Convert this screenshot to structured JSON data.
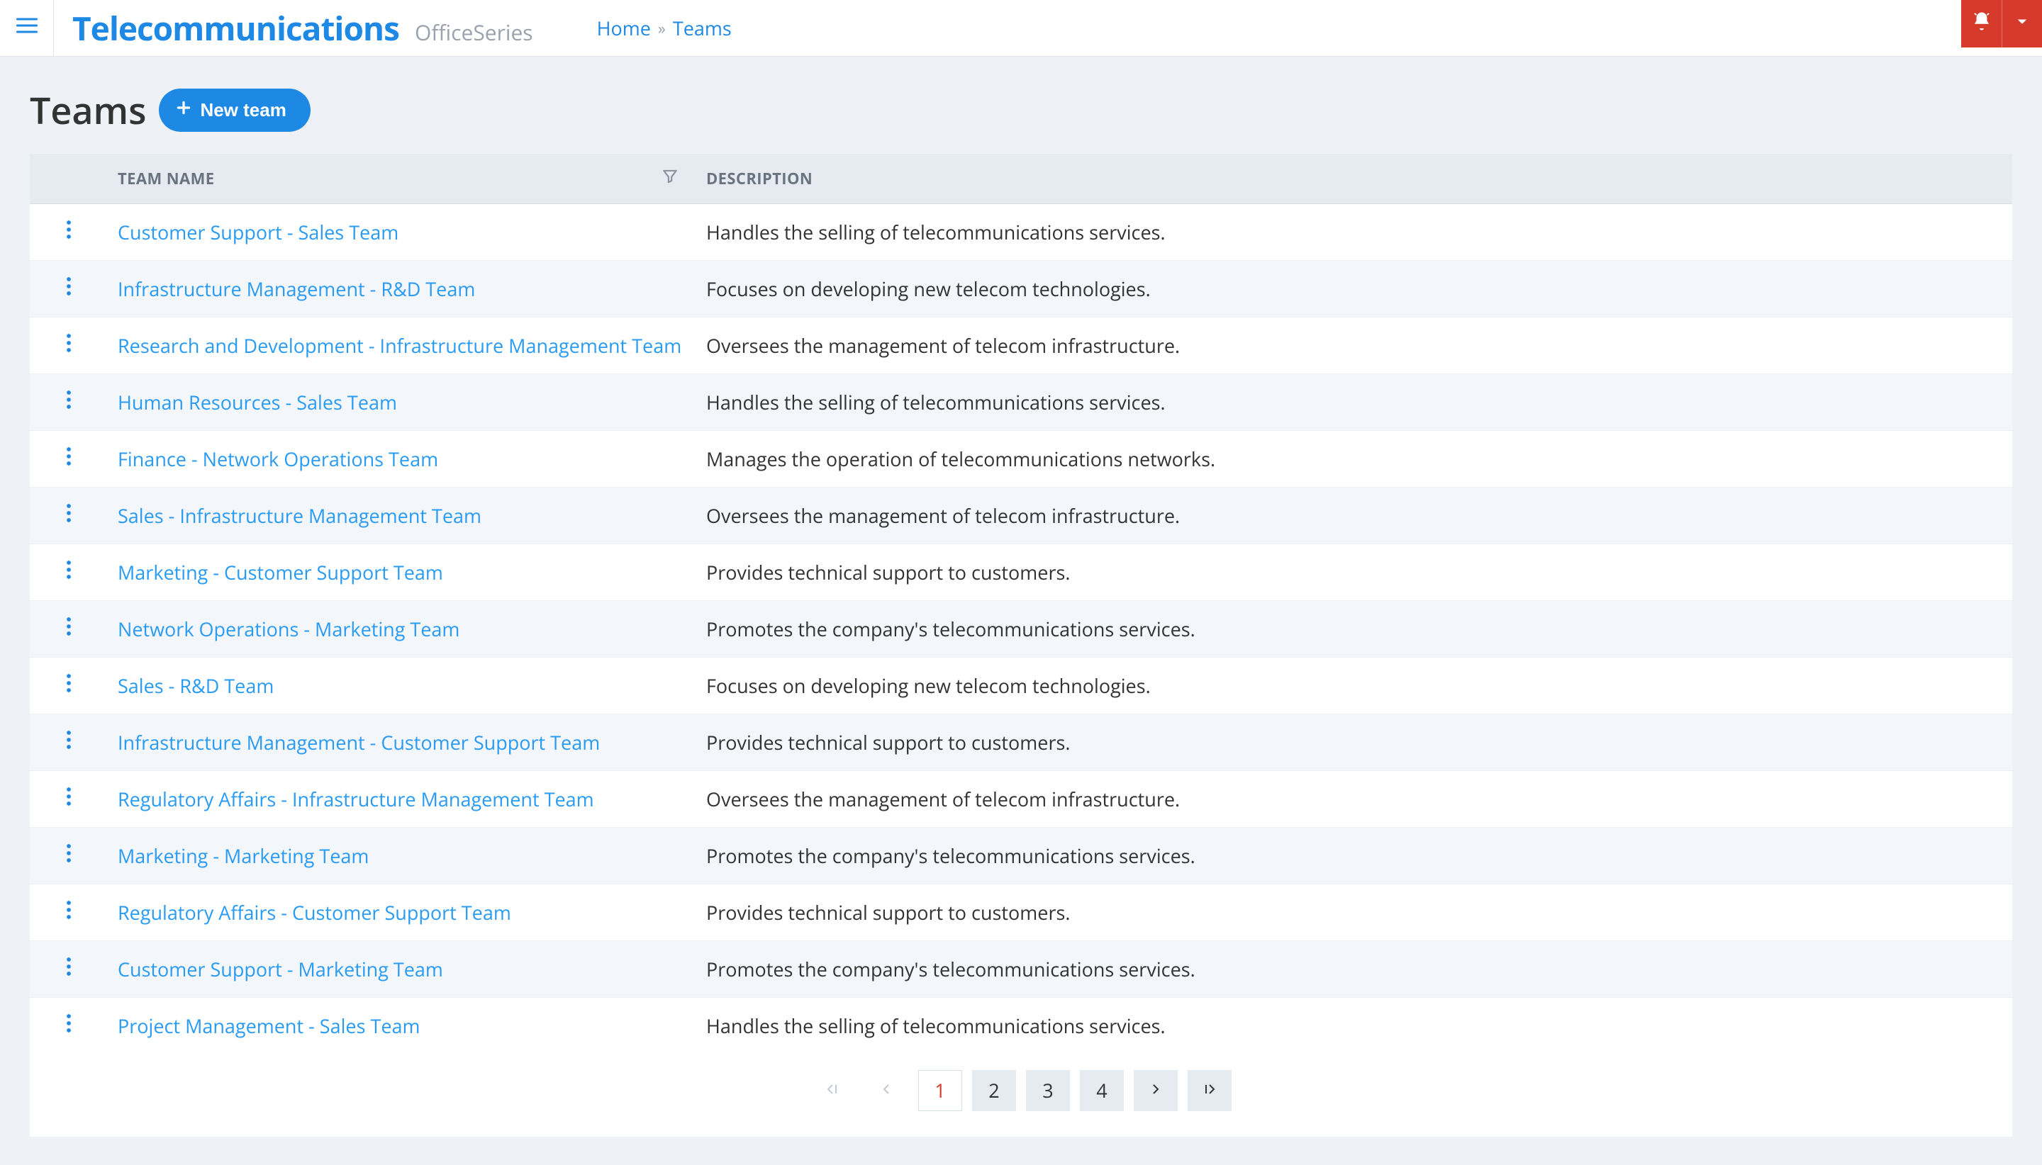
{
  "brand": {
    "main": "Telecommunications",
    "sub": "OfficeSeries"
  },
  "breadcrumb": {
    "home": "Home",
    "current": "Teams"
  },
  "page": {
    "title": "Teams",
    "new_button": "New team"
  },
  "table": {
    "columns": {
      "name": "Team Name",
      "description": "Description"
    },
    "rows": [
      {
        "name": "Customer Support - Sales Team",
        "description": "Handles the selling of telecommunications services."
      },
      {
        "name": "Infrastructure Management - R&D Team",
        "description": "Focuses on developing new telecom technologies."
      },
      {
        "name": "Research and Development - Infrastructure Management Team",
        "description": "Oversees the management of telecom infrastructure."
      },
      {
        "name": "Human Resources - Sales Team",
        "description": "Handles the selling of telecommunications services."
      },
      {
        "name": "Finance - Network Operations Team",
        "description": "Manages the operation of telecommunications networks."
      },
      {
        "name": "Sales - Infrastructure Management Team",
        "description": "Oversees the management of telecom infrastructure."
      },
      {
        "name": "Marketing - Customer Support Team",
        "description": "Provides technical support to customers."
      },
      {
        "name": "Network Operations - Marketing Team",
        "description": "Promotes the company's telecommunications services."
      },
      {
        "name": "Sales - R&D Team",
        "description": "Focuses on developing new telecom technologies."
      },
      {
        "name": "Infrastructure Management - Customer Support Team",
        "description": "Provides technical support to customers."
      },
      {
        "name": "Regulatory Affairs - Infrastructure Management Team",
        "description": "Oversees the management of telecom infrastructure."
      },
      {
        "name": "Marketing - Marketing Team",
        "description": "Promotes the company's telecommunications services."
      },
      {
        "name": "Regulatory Affairs - Customer Support Team",
        "description": "Provides technical support to customers."
      },
      {
        "name": "Customer Support - Marketing Team",
        "description": "Promotes the company's telecommunications services."
      },
      {
        "name": "Project Management - Sales Team",
        "description": "Handles the selling of telecommunications services."
      }
    ]
  },
  "pagination": {
    "pages": [
      "1",
      "2",
      "3",
      "4"
    ],
    "current": 1
  }
}
